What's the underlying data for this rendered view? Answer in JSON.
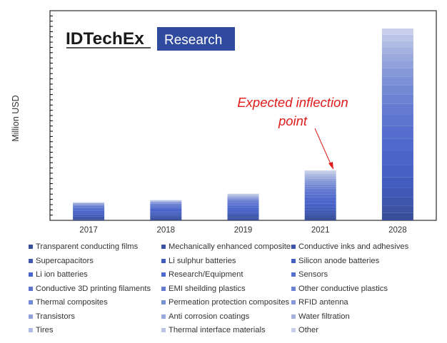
{
  "chart_data": {
    "type": "bar",
    "stacked": true,
    "title": "",
    "xlabel": "",
    "ylabel": "Million USD",
    "categories": [
      "2017",
      "2018",
      "2019",
      "2021",
      "2028"
    ],
    "ylim": [
      0,
      100
    ],
    "totals": [
      9,
      10,
      13,
      23.5,
      92
    ],
    "series": [
      {
        "name": "Transparent conducting films",
        "values": [
          0.6,
          0.7,
          0.8,
          1.2,
          3.5
        ]
      },
      {
        "name": "Mechanically enhanced composites",
        "values": [
          0.6,
          0.7,
          0.8,
          1.2,
          3.5
        ]
      },
      {
        "name": "Conductive inks and adhesives",
        "values": [
          0.6,
          0.7,
          0.8,
          1.3,
          4.0
        ]
      },
      {
        "name": "Supercapacitors",
        "values": [
          0.6,
          0.7,
          0.8,
          1.3,
          4.5
        ]
      },
      {
        "name": "Li sulphur batteries",
        "values": [
          0.6,
          0.7,
          0.8,
          1.4,
          5.0
        ]
      },
      {
        "name": "Silicon anode batteries",
        "values": [
          0.7,
          0.8,
          0.9,
          1.5,
          6.0
        ]
      },
      {
        "name": "Li ion batteries",
        "values": [
          0.8,
          0.8,
          1.0,
          1.6,
          6.5
        ]
      },
      {
        "name": "Research/Equipment",
        "values": [
          0.8,
          0.8,
          1.0,
          1.6,
          6.0
        ]
      },
      {
        "name": "Sensors",
        "values": [
          0.6,
          0.6,
          0.8,
          1.4,
          6.0
        ]
      },
      {
        "name": "Conductive 3D printing filaments",
        "values": [
          0.5,
          0.5,
          0.7,
          1.3,
          5.5
        ]
      },
      {
        "name": "EMI sheilding plastics",
        "values": [
          0.4,
          0.5,
          0.6,
          1.2,
          5.0
        ]
      },
      {
        "name": "Other conductive plastics",
        "values": [
          0.3,
          0.4,
          0.5,
          1.1,
          4.5
        ]
      },
      {
        "name": "Thermal composites",
        "values": [
          0.3,
          0.3,
          0.5,
          1.0,
          4.5
        ]
      },
      {
        "name": "Permeation protection composites",
        "values": [
          0.2,
          0.3,
          0.4,
          0.9,
          4.0
        ]
      },
      {
        "name": "RFID antenna",
        "values": [
          0.2,
          0.2,
          0.4,
          0.9,
          4.0
        ]
      },
      {
        "name": "Transistors",
        "values": [
          0.2,
          0.2,
          0.4,
          0.9,
          3.5
        ]
      },
      {
        "name": "Anti corrosion coatings",
        "values": [
          0.2,
          0.2,
          0.3,
          0.8,
          3.5
        ]
      },
      {
        "name": "Water filtration",
        "values": [
          0.1,
          0.2,
          0.3,
          0.8,
          3.0
        ]
      },
      {
        "name": "Tires",
        "values": [
          0.1,
          0.2,
          0.3,
          0.8,
          3.0
        ]
      },
      {
        "name": "Thermal interface materials",
        "values": [
          0.1,
          0.1,
          0.3,
          0.8,
          3.0
        ]
      },
      {
        "name": "Other",
        "values": [
          0.1,
          0.1,
          0.3,
          0.8,
          3.0
        ]
      }
    ],
    "colors": [
      "#3a4f9a",
      "#3c52a3",
      "#3e56ac",
      "#4059b5",
      "#425dbe",
      "#4660c4",
      "#4a64ca",
      "#5069cc",
      "#566fce",
      "#5d75cf",
      "#647bd1",
      "#6c82d2",
      "#7489d4",
      "#7c90d6",
      "#8698d8",
      "#90a0da",
      "#9aa9dd",
      "#a5b2e0",
      "#b0bbe3",
      "#bbc4e7",
      "#c8cfeb"
    ],
    "annotation": {
      "text": "Expected inflection point",
      "line1": "Expected inflection",
      "line2": "point",
      "target_category": "2021",
      "color": "#e01b1b"
    },
    "logo": {
      "name": "IDTechEx",
      "tagline": "Research",
      "tagline_bg": "#2f4a9e"
    },
    "grid": false,
    "legend_position": "bottom"
  }
}
